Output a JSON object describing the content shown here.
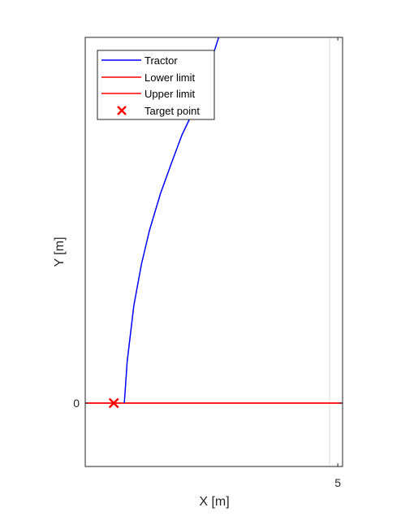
{
  "chart_data": {
    "type": "line",
    "xlabel": "X [m]",
    "ylabel": "Y [m]",
    "xlim": [
      -0.3,
      5.1
    ],
    "ylim": [
      -1.3,
      7.5
    ],
    "x_ticks": [
      {
        "value": 5,
        "label": "5"
      }
    ],
    "y_ticks": [
      {
        "value": 0,
        "label": "0"
      }
    ],
    "grid": false,
    "legend_position": "top-left",
    "legend": [
      "Tractor",
      "Lower limit",
      "Upper limit",
      "Target point"
    ],
    "series": [
      {
        "name": "Tractor",
        "color": "#0000ff",
        "style": "line",
        "x": [
          0.52,
          0.58,
          0.72,
          0.88,
          1.05,
          1.28,
          1.52,
          1.73,
          1.95,
          2.1,
          2.32,
          2.5
        ],
        "y": [
          0.0,
          0.85,
          2.0,
          2.85,
          3.55,
          4.3,
          4.95,
          5.5,
          5.95,
          6.25,
          6.95,
          7.5
        ]
      },
      {
        "name": "Lower limit",
        "color": "#ff0000",
        "style": "line",
        "x": [
          -0.3,
          5.1
        ],
        "y": [
          0,
          0
        ]
      },
      {
        "name": "Upper limit",
        "color": "#ff0000",
        "style": "line",
        "x": [
          -0.3,
          5.1
        ],
        "y": [
          0,
          0
        ]
      },
      {
        "name": "Target point",
        "color": "#ff0000",
        "style": "marker-x",
        "x": [
          0.3
        ],
        "y": [
          0
        ]
      }
    ]
  }
}
